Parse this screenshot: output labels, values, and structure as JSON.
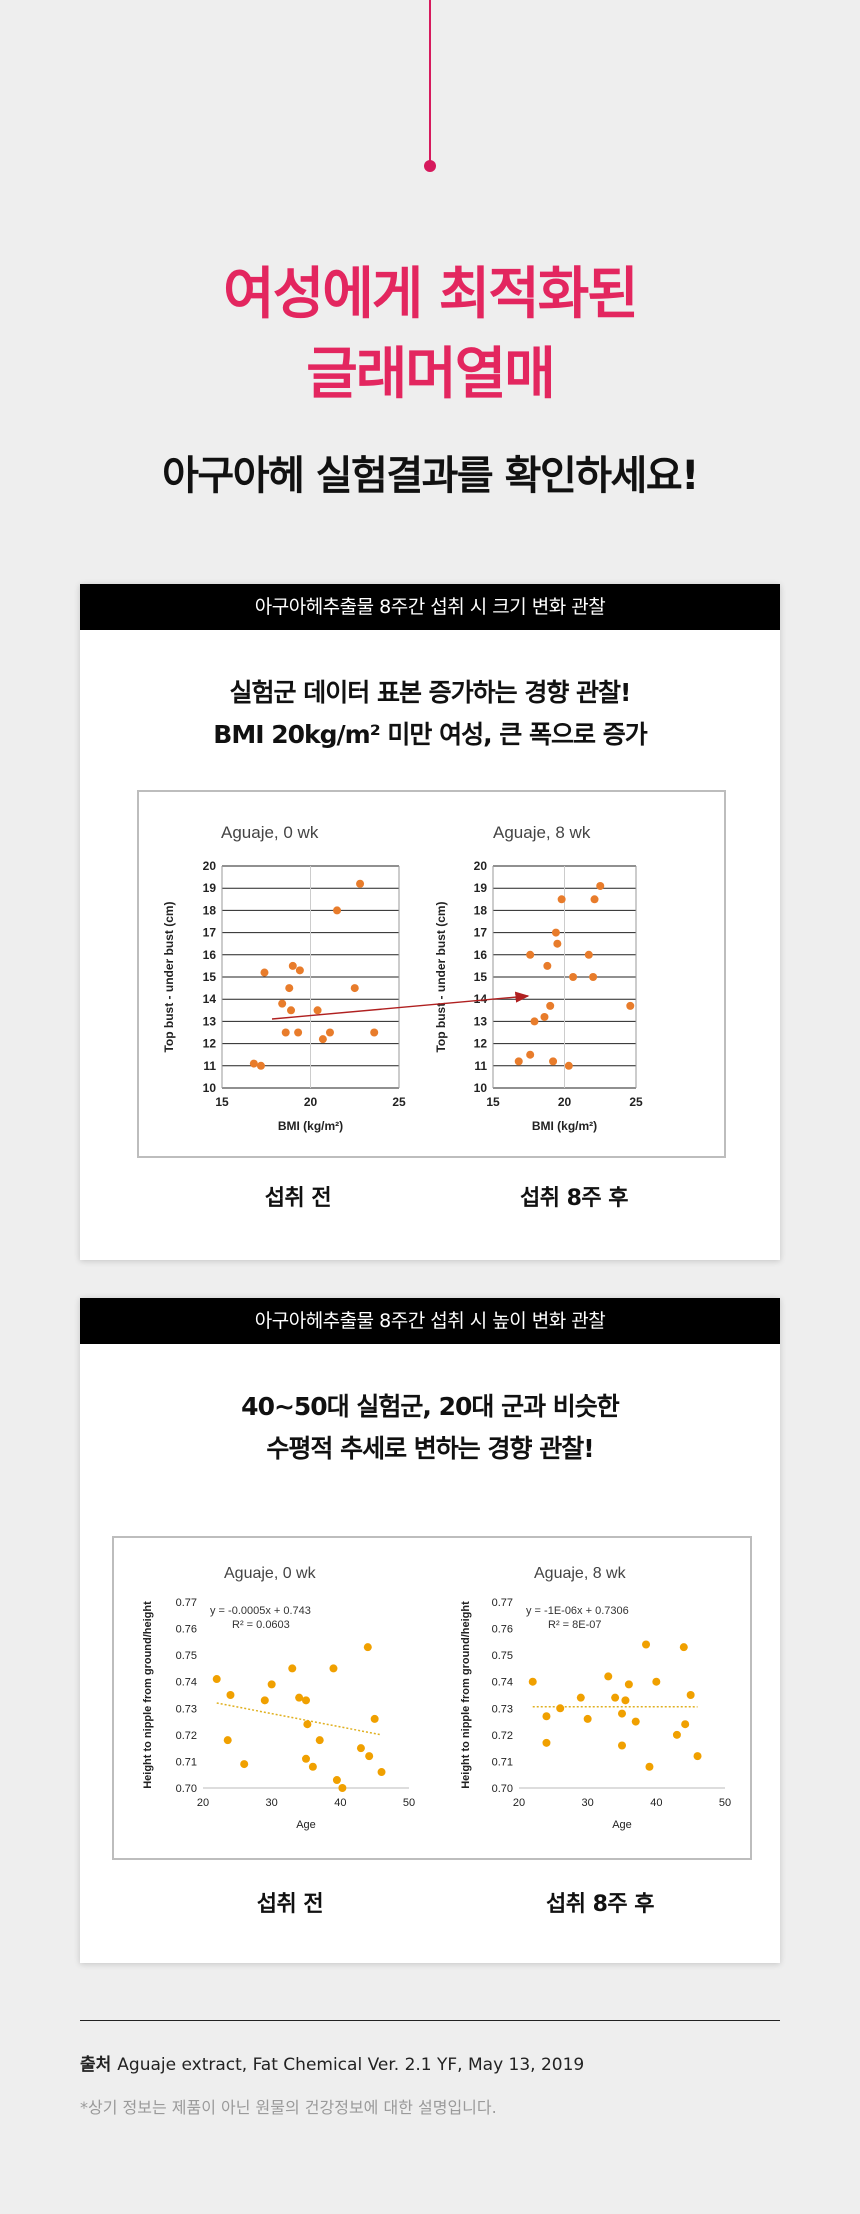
{
  "header": {
    "headline_line1": "여성에게 최적화된",
    "headline_line2": "글래머열매",
    "subheadline": "아구아헤 실험결과를 확인하세요!"
  },
  "colors": {
    "accent": "#e3265f",
    "line": "#d6195c",
    "dot_orange": "#e87c2b",
    "dot_amber": "#f0a000",
    "arrow": "#b02020"
  },
  "section1": {
    "header": "아구아헤추출물 8주간 섭취 시 크기 변화 관찰",
    "desc_line1": "실험군 데이터 표본 증가하는 경향 관찰!",
    "desc_line2": "BMI 20kg/m² 미만 여성, 큰 폭으로 증가",
    "caption_before": "섭취 전",
    "caption_after": "섭취 8주 후"
  },
  "section2": {
    "header": "아구아헤추출물 8주간 섭취 시 높이 변화 관찰",
    "desc_line1": "40~50대 실험군, 20대 군과 비슷한",
    "desc_line2": "수평적 추세로 변하는 경향 관찰!",
    "caption_before": "섭취 전",
    "caption_after": "섭취 8주 후"
  },
  "footer": {
    "source_label": "출처",
    "source_text": "Aguaje extract, Fat Chemical Ver. 2.1 YF, May 13, 2019",
    "note": "*상기 정보는 제품이 아닌 원물의 건강정보에 대한 설명입니다."
  },
  "chart_data": [
    {
      "type": "scatter",
      "title": "Aguaje, 0 wk",
      "xlabel": "BMI (kg/m²)",
      "ylabel": "Top bust - under bust (cm)",
      "xlim": [
        15,
        25
      ],
      "ylim": [
        10,
        20
      ],
      "xticks": [
        15,
        20,
        25
      ],
      "yticks": [
        10,
        11,
        12,
        13,
        14,
        15,
        16,
        17,
        18,
        19,
        20
      ],
      "grid": "horizontal",
      "points": [
        {
          "x": 16.8,
          "y": 11.1
        },
        {
          "x": 17.2,
          "y": 11.0
        },
        {
          "x": 17.4,
          "y": 15.2
        },
        {
          "x": 18.4,
          "y": 13.8
        },
        {
          "x": 18.6,
          "y": 12.5
        },
        {
          "x": 18.8,
          "y": 14.5
        },
        {
          "x": 18.9,
          "y": 13.5
        },
        {
          "x": 19.0,
          "y": 15.5
        },
        {
          "x": 19.3,
          "y": 12.5
        },
        {
          "x": 19.4,
          "y": 15.3
        },
        {
          "x": 20.4,
          "y": 13.5
        },
        {
          "x": 20.7,
          "y": 12.2
        },
        {
          "x": 21.1,
          "y": 12.5
        },
        {
          "x": 21.5,
          "y": 18.0
        },
        {
          "x": 22.5,
          "y": 14.5
        },
        {
          "x": 22.8,
          "y": 19.2
        },
        {
          "x": 23.6,
          "y": 12.5
        }
      ]
    },
    {
      "type": "scatter",
      "title": "Aguaje, 8 wk",
      "xlabel": "BMI (kg/m²)",
      "ylabel": "Top bust - under bust (cm)",
      "xlim": [
        15,
        25
      ],
      "ylim": [
        10,
        20
      ],
      "xticks": [
        15,
        20,
        25
      ],
      "yticks": [
        10,
        11,
        12,
        13,
        14,
        15,
        16,
        17,
        18,
        19,
        20
      ],
      "grid": "horizontal",
      "points": [
        {
          "x": 16.8,
          "y": 11.2
        },
        {
          "x": 17.6,
          "y": 11.5
        },
        {
          "x": 17.6,
          "y": 16.0
        },
        {
          "x": 17.9,
          "y": 13.0
        },
        {
          "x": 18.6,
          "y": 13.2
        },
        {
          "x": 18.8,
          "y": 15.5
        },
        {
          "x": 19.0,
          "y": 13.7
        },
        {
          "x": 19.2,
          "y": 11.2
        },
        {
          "x": 19.4,
          "y": 17.0
        },
        {
          "x": 19.5,
          "y": 16.5
        },
        {
          "x": 19.8,
          "y": 18.5
        },
        {
          "x": 20.3,
          "y": 11.0
        },
        {
          "x": 20.6,
          "y": 15.0
        },
        {
          "x": 21.7,
          "y": 16.0
        },
        {
          "x": 22.0,
          "y": 15.0
        },
        {
          "x": 22.1,
          "y": 18.5
        },
        {
          "x": 22.5,
          "y": 19.1
        },
        {
          "x": 24.6,
          "y": 13.7
        }
      ]
    },
    {
      "type": "scatter",
      "title": "Aguaje, 0 wk",
      "xlabel": "Age",
      "ylabel": "Height to nipple from ground/height",
      "xlim": [
        20,
        50
      ],
      "ylim": [
        0.7,
        0.77
      ],
      "xticks": [
        20,
        30,
        40,
        50
      ],
      "yticks": [
        0.7,
        0.71,
        0.72,
        0.73,
        0.74,
        0.75,
        0.76,
        0.77
      ],
      "grid": "none",
      "annotation_line1": "y = -0.0005x + 0.743",
      "annotation_line2": "R² = 0.0603",
      "trendline": {
        "slope": -0.0005,
        "intercept": 0.743
      },
      "points": [
        {
          "x": 22,
          "y": 0.741
        },
        {
          "x": 23.6,
          "y": 0.718
        },
        {
          "x": 24,
          "y": 0.735
        },
        {
          "x": 26,
          "y": 0.709
        },
        {
          "x": 29,
          "y": 0.733
        },
        {
          "x": 30,
          "y": 0.739
        },
        {
          "x": 33,
          "y": 0.745
        },
        {
          "x": 34,
          "y": 0.734
        },
        {
          "x": 35,
          "y": 0.711
        },
        {
          "x": 35,
          "y": 0.733
        },
        {
          "x": 35.2,
          "y": 0.724
        },
        {
          "x": 36,
          "y": 0.708
        },
        {
          "x": 37,
          "y": 0.718
        },
        {
          "x": 39,
          "y": 0.745
        },
        {
          "x": 39.5,
          "y": 0.703
        },
        {
          "x": 40.3,
          "y": 0.7
        },
        {
          "x": 43,
          "y": 0.715
        },
        {
          "x": 44,
          "y": 0.753
        },
        {
          "x": 44.2,
          "y": 0.712
        },
        {
          "x": 45,
          "y": 0.726
        },
        {
          "x": 46,
          "y": 0.706
        }
      ]
    },
    {
      "type": "scatter",
      "title": "Aguaje, 8 wk",
      "xlabel": "Age",
      "ylabel": "Height to nipple from ground/height",
      "xlim": [
        20,
        50
      ],
      "ylim": [
        0.7,
        0.77
      ],
      "xticks": [
        20,
        30,
        40,
        50
      ],
      "yticks": [
        0.7,
        0.71,
        0.72,
        0.73,
        0.74,
        0.75,
        0.76,
        0.77
      ],
      "grid": "none",
      "annotation_line1": "y = -1E-06x + 0.7306",
      "annotation_line2": "R² = 8E-07",
      "trendline": {
        "slope": -1e-06,
        "intercept": 0.7306
      },
      "points": [
        {
          "x": 22,
          "y": 0.74
        },
        {
          "x": 24,
          "y": 0.727
        },
        {
          "x": 24,
          "y": 0.717
        },
        {
          "x": 26,
          "y": 0.73
        },
        {
          "x": 29,
          "y": 0.734
        },
        {
          "x": 30,
          "y": 0.726
        },
        {
          "x": 33,
          "y": 0.742
        },
        {
          "x": 34,
          "y": 0.734
        },
        {
          "x": 35,
          "y": 0.728
        },
        {
          "x": 35,
          "y": 0.716
        },
        {
          "x": 35.5,
          "y": 0.733
        },
        {
          "x": 36,
          "y": 0.739
        },
        {
          "x": 37,
          "y": 0.725
        },
        {
          "x": 38.5,
          "y": 0.754
        },
        {
          "x": 39,
          "y": 0.708
        },
        {
          "x": 40,
          "y": 0.74
        },
        {
          "x": 43,
          "y": 0.72
        },
        {
          "x": 44,
          "y": 0.753
        },
        {
          "x": 44.2,
          "y": 0.724
        },
        {
          "x": 45,
          "y": 0.735
        },
        {
          "x": 46,
          "y": 0.712
        }
      ]
    }
  ]
}
